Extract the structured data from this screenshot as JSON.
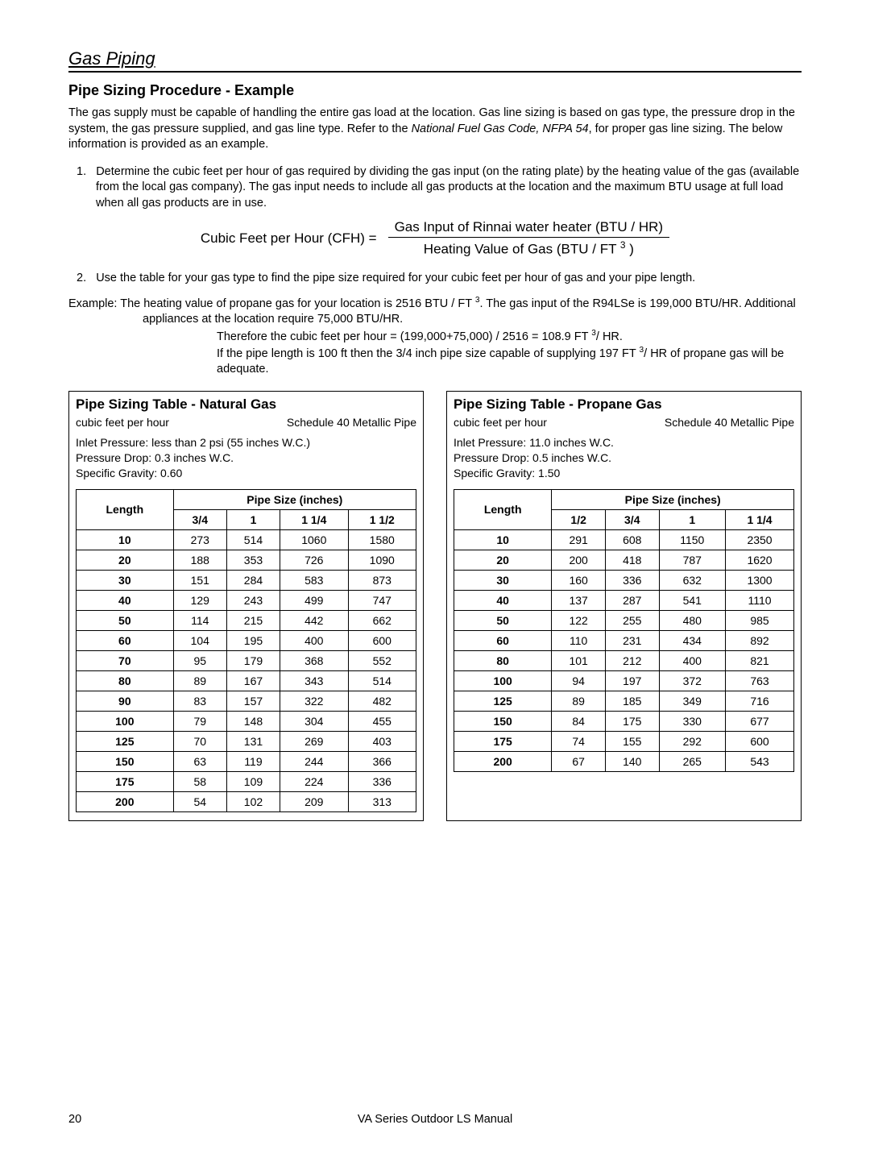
{
  "header": {
    "section_title": "Gas Piping"
  },
  "subheading": "Pipe Sizing Procedure - Example",
  "intro_para": "The gas supply must be capable of handling the entire gas load at the location.  Gas line sizing is based on gas type, the pressure drop in the system, the gas pressure supplied, and gas line type.  Refer to the ",
  "intro_italic": "National Fuel Gas Code, NFPA 54",
  "intro_tail": ", for proper gas line sizing.  The below information is provided as an example.",
  "step1_num": "1.",
  "step1": "Determine the cubic feet per hour of gas required by dividing the gas input (on the rating plate) by the heating value of the gas (available from the local gas company).  The gas input needs to include all gas products at the location and the maximum BTU usage at full load when all gas products are in use.",
  "formula": {
    "lhs": "Cubic Feet per Hour (CFH) =",
    "num": "Gas Input of Rinnai water heater (BTU / HR)",
    "den_pre": "Heating Value of Gas (BTU / FT ",
    "den_sup": "3",
    "den_post": " )"
  },
  "step2_num": "2.",
  "step2": "Use the table for your gas type to find the pipe size required for your cubic feet per hour of gas and your pipe length.",
  "example_label": "Example:  ",
  "example_l1a": "The heating value of propane gas for your location is 2516 BTU / FT ",
  "example_l1sup": "3",
  "example_l1b": ".  The gas input of the R94LSe is 199,000 BTU/HR.   Additional appliances at the location require 75,000 BTU/HR.",
  "example_l2a": "Therefore the cubic feet per hour = (199,000+75,000) / 2516 = 108.9 FT ",
  "example_l2sup": "3",
  "example_l2b": "/ HR.",
  "example_l3a": "If the pipe length is 100 ft then the 3/4 inch pipe size capable of supplying 197 FT ",
  "example_l3sup": "3",
  "example_l3b": "/ HR of propane gas will be adequate.",
  "table_ng": {
    "title": "Pipe Sizing Table - Natural Gas",
    "sub_left": "cubic feet per hour",
    "sub_right": "Schedule 40 Metallic Pipe",
    "param1": "Inlet Pressure:    less than 2 psi (55 inches W.C.)",
    "param2": "Pressure Drop:   0.3 inches W.C.",
    "param3": "Specific Gravity: 0.60",
    "length_label": "Length",
    "pipesize_label": "Pipe Size (inches)",
    "cols": [
      "3/4",
      "1",
      "1 1/4",
      "1 1/2"
    ],
    "rows": [
      {
        "len": "10",
        "v": [
          "273",
          "514",
          "1060",
          "1580"
        ]
      },
      {
        "len": "20",
        "v": [
          "188",
          "353",
          "726",
          "1090"
        ]
      },
      {
        "len": "30",
        "v": [
          "151",
          "284",
          "583",
          "873"
        ]
      },
      {
        "len": "40",
        "v": [
          "129",
          "243",
          "499",
          "747"
        ]
      },
      {
        "len": "50",
        "v": [
          "114",
          "215",
          "442",
          "662"
        ]
      },
      {
        "len": "60",
        "v": [
          "104",
          "195",
          "400",
          "600"
        ]
      },
      {
        "len": "70",
        "v": [
          "95",
          "179",
          "368",
          "552"
        ]
      },
      {
        "len": "80",
        "v": [
          "89",
          "167",
          "343",
          "514"
        ]
      },
      {
        "len": "90",
        "v": [
          "83",
          "157",
          "322",
          "482"
        ]
      },
      {
        "len": "100",
        "v": [
          "79",
          "148",
          "304",
          "455"
        ]
      },
      {
        "len": "125",
        "v": [
          "70",
          "131",
          "269",
          "403"
        ]
      },
      {
        "len": "150",
        "v": [
          "63",
          "119",
          "244",
          "366"
        ]
      },
      {
        "len": "175",
        "v": [
          "58",
          "109",
          "224",
          "336"
        ]
      },
      {
        "len": "200",
        "v": [
          "54",
          "102",
          "209",
          "313"
        ]
      }
    ]
  },
  "table_pg": {
    "title": "Pipe Sizing Table - Propane Gas",
    "sub_left": "cubic feet per hour",
    "sub_right": "Schedule 40 Metallic Pipe",
    "param1": "Inlet Pressure:    11.0 inches W.C.",
    "param2": "Pressure Drop:   0.5 inches W.C.",
    "param3": "Specific Gravity: 1.50",
    "length_label": "Length",
    "pipesize_label": "Pipe Size (inches)",
    "cols": [
      "1/2",
      "3/4",
      "1",
      "1 1/4"
    ],
    "rows": [
      {
        "len": "10",
        "v": [
          "291",
          "608",
          "1150",
          "2350"
        ]
      },
      {
        "len": "20",
        "v": [
          "200",
          "418",
          "787",
          "1620"
        ]
      },
      {
        "len": "30",
        "v": [
          "160",
          "336",
          "632",
          "1300"
        ]
      },
      {
        "len": "40",
        "v": [
          "137",
          "287",
          "541",
          "1110"
        ]
      },
      {
        "len": "50",
        "v": [
          "122",
          "255",
          "480",
          "985"
        ]
      },
      {
        "len": "60",
        "v": [
          "110",
          "231",
          "434",
          "892"
        ]
      },
      {
        "len": "80",
        "v": [
          "101",
          "212",
          "400",
          "821"
        ]
      },
      {
        "len": "100",
        "v": [
          "94",
          "197",
          "372",
          "763"
        ]
      },
      {
        "len": "125",
        "v": [
          "89",
          "185",
          "349",
          "716"
        ]
      },
      {
        "len": "150",
        "v": [
          "84",
          "175",
          "330",
          "677"
        ]
      },
      {
        "len": "175",
        "v": [
          "74",
          "155",
          "292",
          "600"
        ]
      },
      {
        "len": "200",
        "v": [
          "67",
          "140",
          "265",
          "543"
        ]
      }
    ]
  },
  "footer": {
    "page": "20",
    "manual": "VA Series Outdoor LS Manual"
  }
}
